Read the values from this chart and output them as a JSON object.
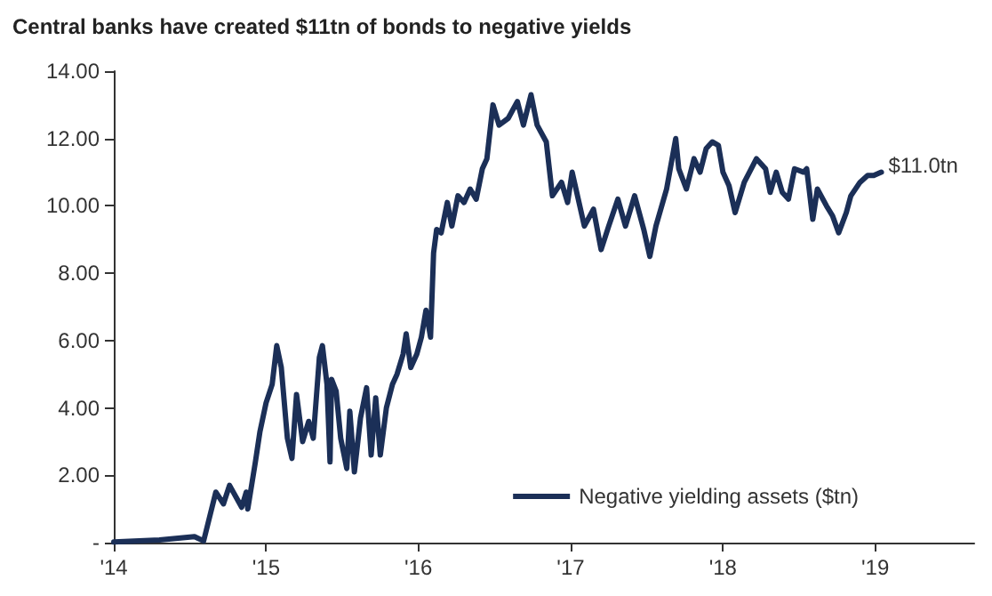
{
  "chart_data": {
    "type": "line",
    "title": "Central banks have created $11tn of bonds to negative yields",
    "x": [
      2014.0,
      2014.3,
      2014.53,
      2014.59,
      2014.67,
      2014.72,
      2014.76,
      2014.84,
      2014.87,
      2014.88,
      2014.93,
      2014.96,
      2015.0,
      2015.04,
      2015.07,
      2015.1,
      2015.14,
      2015.17,
      2015.2,
      2015.24,
      2015.28,
      2015.31,
      2015.35,
      2015.37,
      2015.4,
      2015.42,
      2015.43,
      2015.46,
      2015.49,
      2015.53,
      2015.55,
      2015.58,
      2015.62,
      2015.66,
      2015.69,
      2015.72,
      2015.75,
      2015.79,
      2015.83,
      2015.86,
      2015.9,
      2015.92,
      2015.95,
      2015.99,
      2016.02,
      2016.05,
      2016.08,
      2016.1,
      2016.12,
      2016.15,
      2016.19,
      2016.22,
      2016.26,
      2016.3,
      2016.34,
      2016.38,
      2016.42,
      2016.45,
      2016.49,
      2016.53,
      2016.59,
      2016.65,
      2016.69,
      2016.74,
      2016.78,
      2016.84,
      2016.88,
      2016.94,
      2016.98,
      2017.01,
      2017.05,
      2017.09,
      2017.15,
      2017.2,
      2017.25,
      2017.31,
      2017.36,
      2017.42,
      2017.48,
      2017.52,
      2017.56,
      2017.63,
      2017.69,
      2017.71,
      2017.76,
      2017.81,
      2017.85,
      2017.89,
      2017.93,
      2017.97,
      2018.0,
      2018.04,
      2018.08,
      2018.14,
      2018.22,
      2018.28,
      2018.31,
      2018.35,
      2018.39,
      2018.43,
      2018.47,
      2018.53,
      2018.55,
      2018.59,
      2018.62,
      2018.68,
      2018.72,
      2018.76,
      2018.81,
      2018.84,
      2018.9,
      2018.95,
      2018.99,
      2019.04
    ],
    "series": [
      {
        "name": "Negative yielding assets ($tn)",
        "color": "#1b2f57",
        "values": [
          0.02,
          0.08,
          0.18,
          0.05,
          1.5,
          1.15,
          1.7,
          1.05,
          1.5,
          1.0,
          2.4,
          3.3,
          4.15,
          4.7,
          5.85,
          5.2,
          3.1,
          2.5,
          4.4,
          3.0,
          3.6,
          3.1,
          5.5,
          5.85,
          4.7,
          2.4,
          4.85,
          4.5,
          3.1,
          2.2,
          3.9,
          2.1,
          3.7,
          4.6,
          2.6,
          4.3,
          2.6,
          4.0,
          4.7,
          5.0,
          5.6,
          6.2,
          5.2,
          5.6,
          6.1,
          6.9,
          6.1,
          8.6,
          9.3,
          9.2,
          10.1,
          9.4,
          10.3,
          10.1,
          10.5,
          10.2,
          11.1,
          11.4,
          13.0,
          12.4,
          12.6,
          13.1,
          12.4,
          13.3,
          12.4,
          11.9,
          10.3,
          10.7,
          10.1,
          11.0,
          10.2,
          9.4,
          9.9,
          8.7,
          9.4,
          10.2,
          9.4,
          10.3,
          9.3,
          8.5,
          9.4,
          10.5,
          12.0,
          11.1,
          10.5,
          11.4,
          11.0,
          11.7,
          11.9,
          11.8,
          11.0,
          10.6,
          9.8,
          10.7,
          11.4,
          11.1,
          10.4,
          11.0,
          10.4,
          10.2,
          11.1,
          11.0,
          11.1,
          9.6,
          10.5,
          10.0,
          9.7,
          9.2,
          9.8,
          10.3,
          10.7,
          10.9,
          10.9,
          11.0
        ]
      }
    ],
    "annotations": [
      {
        "text": "$11.0tn",
        "x": 2019.04,
        "y": 11.0
      }
    ],
    "xlim": [
      2014,
      2019.65
    ],
    "xticks": [
      {
        "value": 2014,
        "label": "'14"
      },
      {
        "value": 2015,
        "label": "'15"
      },
      {
        "value": 2016,
        "label": "'16"
      },
      {
        "value": 2017,
        "label": "'17"
      },
      {
        "value": 2018,
        "label": "'18"
      },
      {
        "value": 2019,
        "label": "'19"
      }
    ],
    "ylim": [
      0,
      14
    ],
    "yticks": [
      {
        "value": 0,
        "label": "-"
      },
      {
        "value": 2,
        "label": "2.00"
      },
      {
        "value": 4,
        "label": "4.00"
      },
      {
        "value": 6,
        "label": "6.00"
      },
      {
        "value": 8,
        "label": "8.00"
      },
      {
        "value": 10,
        "label": "10.00"
      },
      {
        "value": 12,
        "label": "12.00"
      },
      {
        "value": 14,
        "label": "14.00"
      }
    ],
    "legend": "bottom right",
    "marker": "none",
    "line_style": "solid"
  }
}
